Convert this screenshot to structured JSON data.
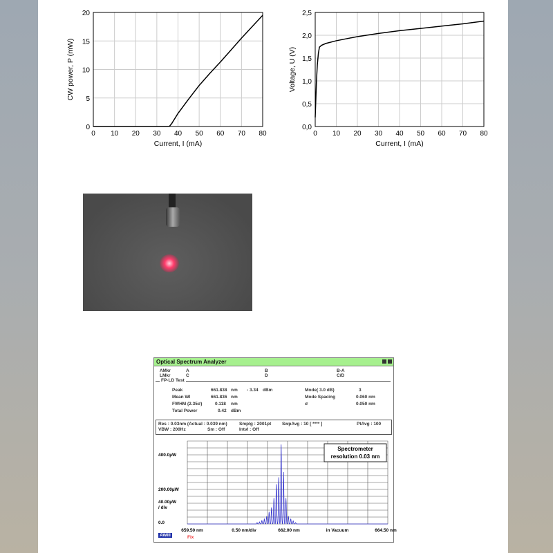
{
  "chart_data": [
    {
      "type": "line",
      "xlabel": "Current, I (mA)",
      "ylabel": "CW power, P (mW)",
      "xlim": [
        0,
        80
      ],
      "ylim": [
        0,
        20
      ],
      "xticks": [
        "0",
        "10",
        "20",
        "30",
        "40",
        "50",
        "60",
        "70",
        "80"
      ],
      "yticks": [
        "0",
        "5",
        "10",
        "15",
        "20"
      ],
      "grid": true,
      "x": [
        0,
        10,
        20,
        30,
        35,
        36,
        37,
        40,
        45,
        50,
        55,
        60,
        65,
        70,
        75,
        80
      ],
      "y": [
        0,
        0,
        0,
        0,
        0,
        0.05,
        0.5,
        2.3,
        4.8,
        7.2,
        9.3,
        11.3,
        13.4,
        15.5,
        17.5,
        19.5
      ]
    },
    {
      "type": "line",
      "xlabel": "Current, I (mA)",
      "ylabel": "Voltage, U (V)",
      "xlim": [
        0,
        80
      ],
      "ylim": [
        0,
        2.5
      ],
      "xticks": [
        "0",
        "10",
        "20",
        "30",
        "40",
        "50",
        "60",
        "70",
        "80"
      ],
      "yticks": [
        "0,0",
        "0,5",
        "1,0",
        "1,5",
        "2,0",
        "2,5"
      ],
      "grid": true,
      "x": [
        0,
        0.3,
        0.6,
        1,
        1.5,
        2,
        3,
        5,
        10,
        20,
        30,
        40,
        50,
        60,
        70,
        80
      ],
      "y": [
        0.2,
        0.6,
        1.0,
        1.35,
        1.6,
        1.74,
        1.78,
        1.82,
        1.88,
        1.97,
        2.04,
        2.1,
        2.15,
        2.2,
        2.25,
        2.31
      ]
    },
    {
      "type": "line",
      "title": "Optical Spectrum Analyzer",
      "xlim": [
        659.5,
        664.5
      ],
      "ylim": [
        0,
        480
      ],
      "xlabels": [
        "659.50 nm",
        "0.50 nm/div",
        "662.00 nm",
        "in Vacuum",
        "664.50 nm"
      ],
      "ylabels": [
        "400.0µW",
        "200.00µW",
        "40.00µW / div",
        "0.0"
      ],
      "annotation": "Spectrometer resolution 0.03 nm",
      "mode_wavelengths": [
        661.24,
        661.3,
        661.36,
        661.42,
        661.48,
        661.54,
        661.6,
        661.66,
        661.72,
        661.78,
        661.84,
        661.9,
        661.96,
        662.02,
        662.08,
        662.14,
        662.2
      ],
      "mode_powers": [
        8,
        12,
        20,
        28,
        45,
        70,
        95,
        150,
        230,
        270,
        460,
        300,
        150,
        45,
        30,
        18,
        8
      ]
    }
  ],
  "osa": {
    "title": "Optical Spectrum Analyzer",
    "mkr": {
      "a_label": "ΛMkr",
      "l_label": "LMkr",
      "a": "A",
      "c": "C",
      "b": "B",
      "d": "D",
      "ba": "B-A",
      "cd": "C/D"
    },
    "section": "FP-LD Test",
    "peak": {
      "label": "Peak",
      "value": "661.838",
      "unit": "nm",
      "dbm": "- 3.34",
      "dbm_unit": "dBm"
    },
    "mean": {
      "label": "Mean Wl",
      "value": "661.836",
      "unit": "nm"
    },
    "fwhm": {
      "label": "FWHM (2.35σ)",
      "value": "0.118",
      "unit": "nm"
    },
    "total": {
      "label": "Total Power",
      "value": "0.42",
      "unit": "dBm"
    },
    "mode": {
      "label": "Mode(  3.0  dB)",
      "value": "3"
    },
    "spacing": {
      "label": "Mode Spacing",
      "value": "0.060 nm"
    },
    "sigma": {
      "label": "σ",
      "value": "0.050 nm"
    },
    "settings": {
      "res": "Res :  0.03nm (Actual :  0.039 nm)",
      "smplg": "Smplg :   2001pt",
      "swpavg": "SwpAvg :     10 [   ****  ]",
      "ptavg": "PtAvg :   100",
      "vbw": "VBW :   200Hz",
      "sm": "Sm :   Off",
      "intvl": "Intvl :    Off"
    },
    "logo": "AWill",
    "fix": "Fix"
  },
  "colors": {
    "trace": "#3333cc",
    "titlebar": "#a6f08e",
    "laser_spot": "#ff3a6a"
  }
}
